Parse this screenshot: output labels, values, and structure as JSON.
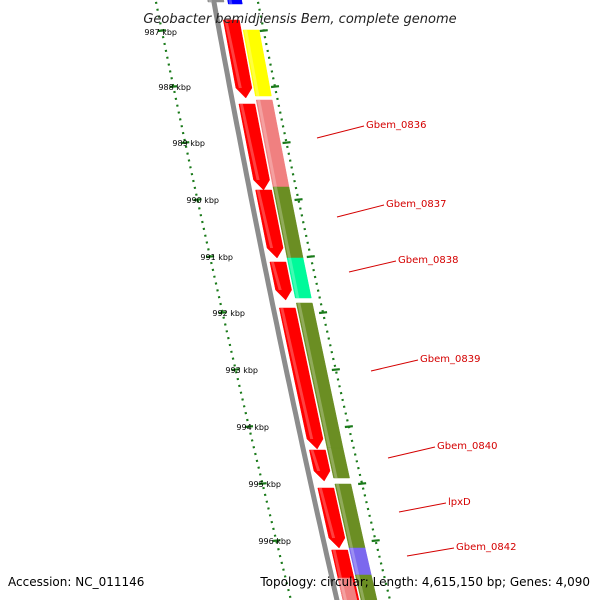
{
  "title": "Geobacter bemidjiensis Bem, complete genome",
  "accession": "Accession: NC_011146",
  "summary": "Topology: circular; Length: 4,615,150 bp; Genes: 4,090",
  "ticks": [
    "987 kbp",
    "988 kbp",
    "989 kbp",
    "990 kbp",
    "991 kbp",
    "992 kbp",
    "993 kbp",
    "994 kbp",
    "995 kbp",
    "996 kbp"
  ],
  "gene_labels": [
    "Gbem_0836",
    "Gbem_0837",
    "Gbem_0838",
    "Gbem_0839",
    "Gbem_0840",
    "lpxD",
    "Gbem_0842"
  ],
  "colors": {
    "cds": "#ff0000",
    "backbone": "#8c8c8c",
    "tick": "#1a7a1a",
    "label": "#d40000",
    "olive": "#6b8e23",
    "pink": "#f08080",
    "yellow": "#ffff00",
    "spring_green": "#00fa9a",
    "purple": "#7b68ee",
    "blue": "#0000ff"
  }
}
